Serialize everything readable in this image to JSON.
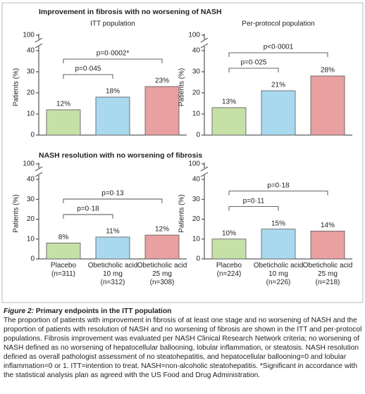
{
  "figure": {
    "section_titles": [
      "Improvement in fibrosis with no worsening of NASH",
      "NASH resolution with no worsening of fibrosis"
    ],
    "caption_label": "Figure 2:",
    "caption_title": "Primary endpoints in the ITT population",
    "caption_text": "The proportion of patients with improvement in fibrosis of at least one stage and no worsening of NASH and the proportion of patients with resolution of NASH and no worsening of fibrosis are shown in the ITT and per-protocol populations. Fibrosis improvement was evaluated per NASH Clinical Research Network criteria; no worsening of NASH defined as no worsening of hepatocellular ballooning, lobular inflammation, or steatosis. NASH resolution defined as overall pathologist assessment of no steatohepatitis, and hepatocellular ballooning=0 and lobular inflammation=0 or 1. ITT=intention to treat. NASH=non-alcoholic steatohepatitis. *Significant in accordance with the statistical analysis plan as agreed with the US Food and Drug Administration."
  },
  "chart_data": [
    {
      "type": "bar",
      "subtitle": "ITT population",
      "ylabel": "Patients (%)",
      "values": [
        12,
        18,
        23
      ],
      "value_labels": [
        "12%",
        "18%",
        "23%"
      ],
      "colors": [
        "#c6e0a8",
        "#a9d9ee",
        "#e8a0a0"
      ],
      "ylim": [
        0,
        40
      ],
      "yticks": [
        0,
        10,
        20,
        30,
        40
      ],
      "ybreak_tick": 100,
      "comparisons": [
        {
          "label": "p=0·045",
          "bars": [
            0,
            1
          ]
        },
        {
          "label": "p=0·0002*",
          "bars": [
            0,
            2
          ]
        }
      ]
    },
    {
      "type": "bar",
      "subtitle": "Per-protocol population",
      "ylabel": "Patients (%)",
      "values": [
        13,
        21,
        28
      ],
      "value_labels": [
        "13%",
        "21%",
        "28%"
      ],
      "colors": [
        "#c6e0a8",
        "#a9d9ee",
        "#e8a0a0"
      ],
      "ylim": [
        0,
        40
      ],
      "yticks": [
        0,
        10,
        20,
        30,
        40
      ],
      "ybreak_tick": 100,
      "comparisons": [
        {
          "label": "p=0·025",
          "bars": [
            0,
            1
          ]
        },
        {
          "label": "p<0·0001",
          "bars": [
            0,
            2
          ]
        }
      ]
    },
    {
      "type": "bar",
      "ylabel": "Patients (%)",
      "categories": [
        "Placebo\n(n=311)",
        "Obeticholic acid\n10 mg\n(n=312)",
        "Obeticholic acid\n25 mg\n(n=308)"
      ],
      "values": [
        8,
        11,
        12
      ],
      "value_labels": [
        "8%",
        "11%",
        "12%"
      ],
      "colors": [
        "#c6e0a8",
        "#a9d9ee",
        "#e8a0a0"
      ],
      "ylim": [
        0,
        40
      ],
      "yticks": [
        0,
        10,
        20,
        30,
        40
      ],
      "ybreak_tick": 100,
      "comparisons": [
        {
          "label": "p=0·18",
          "bars": [
            0,
            1
          ]
        },
        {
          "label": "p=0·13",
          "bars": [
            0,
            2
          ]
        }
      ]
    },
    {
      "type": "bar",
      "ylabel": "Patients (%)",
      "categories": [
        "Placebo\n(n=224)",
        "Obeticholic acid\n10 mg\n(n=226)",
        "Obeticholic acid\n25 mg\n(n=218)"
      ],
      "values": [
        10,
        15,
        14
      ],
      "value_labels": [
        "10%",
        "15%",
        "14%"
      ],
      "colors": [
        "#c6e0a8",
        "#a9d9ee",
        "#e8a0a0"
      ],
      "ylim": [
        0,
        40
      ],
      "yticks": [
        0,
        10,
        20,
        30,
        40
      ],
      "ybreak_tick": 100,
      "comparisons": [
        {
          "label": "p=0·11",
          "bars": [
            0,
            1
          ]
        },
        {
          "label": "p=0·18",
          "bars": [
            0,
            2
          ]
        }
      ]
    }
  ]
}
